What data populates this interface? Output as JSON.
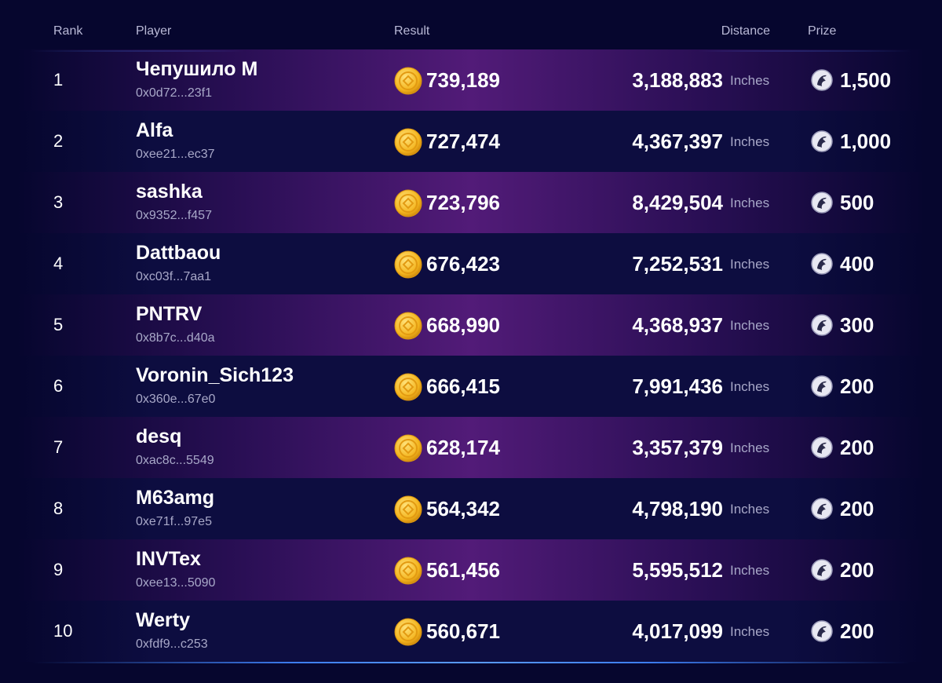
{
  "table": {
    "headers": [
      "Rank",
      "Player",
      "Result",
      "Distance",
      "Prize"
    ],
    "rows": [
      {
        "rank": "1",
        "name": "Чепушило М",
        "address": "0x0d72...23f1",
        "result": "739,189",
        "distance": "3,188,883",
        "unit": "Inches",
        "prize": "1,500"
      },
      {
        "rank": "2",
        "name": "Alfa",
        "address": "0xee21...ec37",
        "result": "727,474",
        "distance": "4,367,397",
        "unit": "Inches",
        "prize": "1,000"
      },
      {
        "rank": "3",
        "name": "sashka",
        "address": "0x9352...f457",
        "result": "723,796",
        "distance": "8,429,504",
        "unit": "Inches",
        "prize": "500"
      },
      {
        "rank": "4",
        "name": "Dattbaou",
        "address": "0xc03f...7aa1",
        "result": "676,423",
        "distance": "7,252,531",
        "unit": "Inches",
        "prize": "400"
      },
      {
        "rank": "5",
        "name": "PNTRV",
        "address": "0x8b7c...d40a",
        "result": "668,990",
        "distance": "4,368,937",
        "unit": "Inches",
        "prize": "300"
      },
      {
        "rank": "6",
        "name": "Voronin_Sich123",
        "address": "0x360e...67e0",
        "result": "666,415",
        "distance": "7,991,436",
        "unit": "Inches",
        "prize": "200"
      },
      {
        "rank": "7",
        "name": "desq",
        "address": "0xac8c...5549",
        "result": "628,174",
        "distance": "3,357,379",
        "unit": "Inches",
        "prize": "200"
      },
      {
        "rank": "8",
        "name": "M63amg",
        "address": "0xe71f...97e5",
        "result": "564,342",
        "distance": "4,798,190",
        "unit": "Inches",
        "prize": "200"
      },
      {
        "rank": "9",
        "name": "INVTex",
        "address": "0xee13...5090",
        "result": "561,456",
        "distance": "5,595,512",
        "unit": "Inches",
        "prize": "200"
      },
      {
        "rank": "10",
        "name": "Werty",
        "address": "0xfdf9...c253",
        "result": "560,671",
        "distance": "4,017,099",
        "unit": "Inches",
        "prize": "200"
      }
    ]
  }
}
